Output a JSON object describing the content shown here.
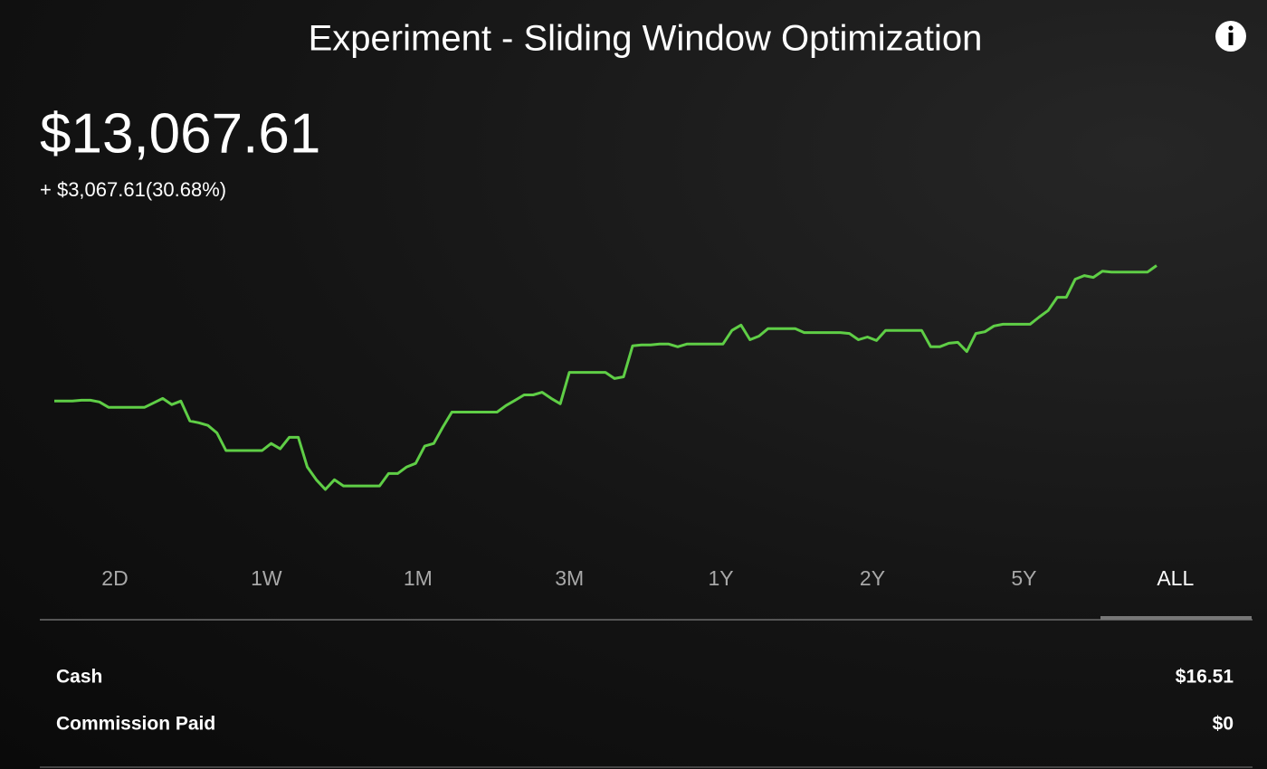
{
  "header": {
    "title": "Experiment - Sliding Window Optimization"
  },
  "portfolio": {
    "value": "$13,067.61",
    "change": "+ $3,067.61(30.68%)"
  },
  "chart_data": {
    "type": "line",
    "color": "#5fce46",
    "ylim": [
      8000,
      14000
    ],
    "values": [
      10000,
      10000,
      10000,
      10020,
      10020,
      9980,
      9860,
      9860,
      9860,
      9860,
      9860,
      9960,
      10060,
      9920,
      10000,
      9550,
      9510,
      9450,
      9280,
      8880,
      8880,
      8880,
      8880,
      8880,
      9040,
      8920,
      9180,
      9180,
      8510,
      8220,
      8000,
      8220,
      8080,
      8080,
      8080,
      8080,
      8080,
      8360,
      8360,
      8510,
      8590,
      8980,
      9040,
      9410,
      9750,
      9750,
      9750,
      9750,
      9750,
      9750,
      9900,
      10020,
      10140,
      10140,
      10200,
      10060,
      9940,
      10650,
      10650,
      10650,
      10650,
      10650,
      10510,
      10550,
      11250,
      11270,
      11270,
      11290,
      11290,
      11230,
      11290,
      11290,
      11290,
      11290,
      11290,
      11600,
      11720,
      11390,
      11470,
      11640,
      11640,
      11640,
      11640,
      11550,
      11550,
      11550,
      11550,
      11550,
      11530,
      11390,
      11450,
      11370,
      11600,
      11600,
      11600,
      11600,
      11600,
      11230,
      11230,
      11310,
      11330,
      11120,
      11530,
      11570,
      11700,
      11740,
      11740,
      11740,
      11740,
      11900,
      12050,
      12350,
      12350,
      12760,
      12840,
      12800,
      12940,
      12920,
      12920,
      12920,
      12920,
      12920,
      13067.61
    ]
  },
  "ranges": [
    "2D",
    "1W",
    "1M",
    "3M",
    "1Y",
    "2Y",
    "5Y",
    "ALL"
  ],
  "selected_range": 7,
  "details": [
    {
      "label": "Cash",
      "value": "$16.51"
    },
    {
      "label": "Commission Paid",
      "value": "$0"
    }
  ]
}
